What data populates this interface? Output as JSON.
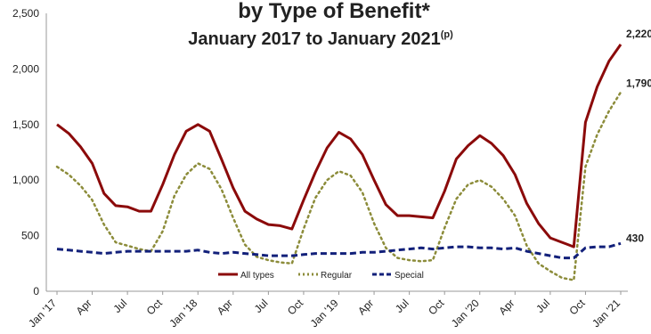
{
  "chart_data": {
    "type": "line",
    "title": "by Type of Benefit*",
    "subtitle": "January 2017 to January 2021",
    "subtitle_superscript": "(p)",
    "xlabel": "",
    "ylabel": "",
    "ylim": [
      0,
      2500
    ],
    "yticks": [
      0,
      500,
      1000,
      1500,
      2000,
      2500
    ],
    "ytick_labels": [
      "0",
      "500",
      "1,000",
      "1,500",
      "2,000",
      "2,500"
    ],
    "grid": false,
    "legend_position": "bottom-center",
    "x_labels": [
      "Jan '17",
      "Apr",
      "Jul",
      "Oct",
      "Jan '18",
      "Apr",
      "Jul",
      "Oct",
      "Jan '19",
      "Apr",
      "Jul",
      "Oct",
      "Jan '20",
      "Apr",
      "Jul",
      "Oct",
      "Jan '21"
    ],
    "x": [
      "2017-01",
      "2017-02",
      "2017-03",
      "2017-04",
      "2017-05",
      "2017-06",
      "2017-07",
      "2017-08",
      "2017-09",
      "2017-10",
      "2017-11",
      "2017-12",
      "2018-01",
      "2018-02",
      "2018-03",
      "2018-04",
      "2018-05",
      "2018-06",
      "2018-07",
      "2018-08",
      "2018-09",
      "2018-10",
      "2018-11",
      "2018-12",
      "2019-01",
      "2019-02",
      "2019-03",
      "2019-04",
      "2019-05",
      "2019-06",
      "2019-07",
      "2019-08",
      "2019-09",
      "2019-10",
      "2019-11",
      "2019-12",
      "2020-01",
      "2020-02",
      "2020-03",
      "2020-04",
      "2020-05",
      "2020-06",
      "2020-07",
      "2020-08",
      "2020-09",
      "2020-10",
      "2020-11",
      "2020-12",
      "2021-01"
    ],
    "series": [
      {
        "name": "All types",
        "color": "#8b0a0a",
        "dash": "solid",
        "values": [
          1500,
          1420,
          1300,
          1150,
          880,
          770,
          760,
          720,
          720,
          960,
          1230,
          1440,
          1500,
          1440,
          1190,
          930,
          720,
          650,
          600,
          590,
          560,
          820,
          1070,
          1290,
          1430,
          1370,
          1230,
          1000,
          780,
          680,
          680,
          670,
          660,
          900,
          1190,
          1310,
          1400,
          1330,
          1220,
          1050,
          790,
          610,
          480,
          440,
          400,
          1520,
          1840,
          2070,
          2220
        ],
        "end_label": "2,220"
      },
      {
        "name": "Regular",
        "color": "#8c8c3a",
        "dash": "dotted",
        "values": [
          1120,
          1050,
          950,
          820,
          600,
          440,
          410,
          380,
          360,
          540,
          860,
          1050,
          1150,
          1100,
          920,
          660,
          420,
          310,
          280,
          260,
          250,
          560,
          840,
          1000,
          1080,
          1040,
          890,
          610,
          390,
          300,
          280,
          270,
          280,
          570,
          830,
          960,
          1000,
          940,
          830,
          680,
          410,
          250,
          180,
          120,
          100,
          1120,
          1410,
          1620,
          1790
        ],
        "end_label": "1,790"
      },
      {
        "name": "Special",
        "color": "#12207a",
        "dash": "dashed",
        "values": [
          380,
          370,
          360,
          350,
          340,
          350,
          360,
          360,
          360,
          360,
          360,
          360,
          370,
          350,
          340,
          350,
          340,
          330,
          320,
          320,
          320,
          330,
          340,
          340,
          340,
          340,
          350,
          350,
          360,
          370,
          380,
          390,
          380,
          390,
          400,
          400,
          390,
          390,
          380,
          390,
          360,
          340,
          320,
          300,
          300,
          390,
          400,
          400,
          430
        ],
        "end_label": "430"
      }
    ]
  }
}
